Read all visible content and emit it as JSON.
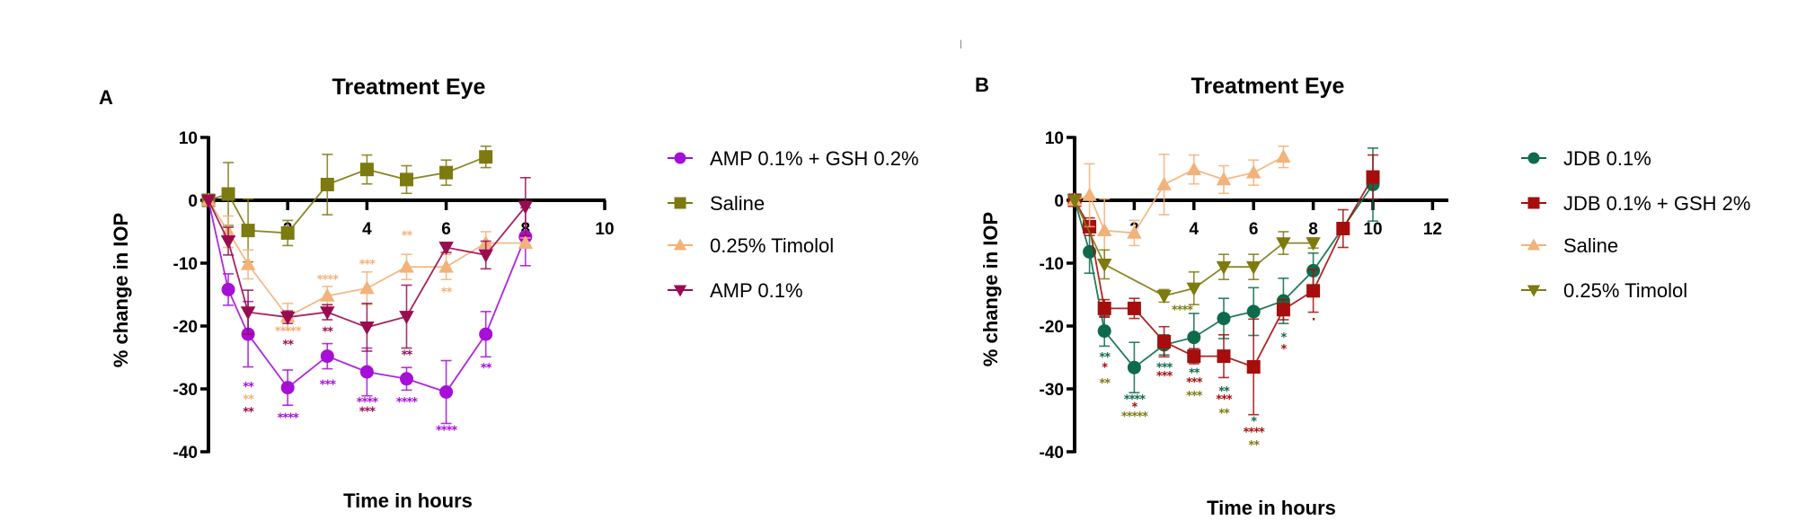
{
  "figure": {
    "marker_tick": "|"
  },
  "chart_data": [
    {
      "type": "line",
      "panel_label": "A",
      "title": "Treatment Eye",
      "xlabel": "Time in hours",
      "ylabel": "% change in IOP",
      "xlim": [
        0,
        10
      ],
      "ylim": [
        -40,
        10
      ],
      "xticks": [
        2,
        4,
        6,
        8,
        10
      ],
      "xtick_labels": [
        "2",
        "4",
        "6",
        "8",
        "10"
      ],
      "yticks": [
        10,
        0,
        -10,
        -20,
        -30,
        -40
      ],
      "ytick_labels": [
        "10",
        "0",
        "-10",
        "-20",
        "-30",
        "-40"
      ],
      "grid": false,
      "legend_position": "right",
      "series": [
        {
          "name": "AMP 0.1% + GSH 0.2%",
          "color": "#a60fd6",
          "marker": "circle",
          "x": [
            0,
            0.5,
            1,
            2,
            3,
            4,
            5,
            6,
            7,
            8
          ],
          "y": [
            0,
            -14.2,
            -21.3,
            -29.8,
            -24.8,
            -27.3,
            -28.4,
            -30.5,
            -21.3,
            -5.8
          ],
          "err": [
            0,
            2.5,
            5.2,
            2.8,
            2.0,
            3.8,
            1.8,
            5.0,
            3.6,
            4.6
          ]
        },
        {
          "name": "Saline",
          "color": "#7d7a0f",
          "marker": "square",
          "x": [
            0,
            0.5,
            1,
            2,
            3,
            4,
            5,
            6,
            7
          ],
          "y": [
            0,
            1.0,
            -4.8,
            -5.2,
            2.5,
            4.9,
            3.3,
            4.4,
            6.9
          ],
          "err": [
            0,
            5.0,
            5.0,
            2.0,
            4.8,
            2.3,
            2.2,
            2.0,
            1.7
          ]
        },
        {
          "name": "0.25% Timolol",
          "color": "#f2b27a",
          "marker": "triangle-up",
          "x": [
            0,
            0.5,
            1,
            2,
            3,
            4,
            5,
            6,
            7,
            8
          ],
          "y": [
            0,
            -5.0,
            -10.2,
            -18.5,
            -15.2,
            -14.0,
            -10.6,
            -10.6,
            -6.8,
            -6.8
          ],
          "err": [
            0,
            2.5,
            2.3,
            2.1,
            1.5,
            2.6,
            2.0,
            2.0,
            1.8,
            0.8
          ]
        },
        {
          "name": "AMP 0.1%",
          "color": "#990c4f",
          "marker": "triangle-down",
          "x": [
            0,
            0.5,
            1,
            2,
            3,
            4,
            5,
            6,
            7,
            8
          ],
          "y": [
            0,
            -6.5,
            -17.8,
            -18.6,
            -17.8,
            -20.2,
            -18.5,
            -7.5,
            -8.7,
            -1.0
          ],
          "err": [
            0,
            2.2,
            3.5,
            1.0,
            1.2,
            3.8,
            5.0,
            0.8,
            2.2,
            4.6
          ]
        }
      ],
      "annotations": [
        {
          "x": 1,
          "y": -30.3,
          "text": "**",
          "color": "#a60fd6"
        },
        {
          "x": 1,
          "y": -32.3,
          "text": "**",
          "color": "#f2b27a"
        },
        {
          "x": 1,
          "y": -34.3,
          "text": "**",
          "color": "#990c4f"
        },
        {
          "x": 2,
          "y": -21.4,
          "text": "*****",
          "color": "#f2b27a"
        },
        {
          "x": 2,
          "y": -23.6,
          "text": "**",
          "color": "#990c4f"
        },
        {
          "x": 2,
          "y": -35.2,
          "text": "****",
          "color": "#a60fd6"
        },
        {
          "x": 3,
          "y": -13.2,
          "text": "****",
          "color": "#f2b27a"
        },
        {
          "x": 3,
          "y": -21.5,
          "text": "**",
          "color": "#990c4f"
        },
        {
          "x": 3,
          "y": -29.9,
          "text": "***",
          "color": "#a60fd6"
        },
        {
          "x": 4,
          "y": -10.8,
          "text": "***",
          "color": "#f2b27a"
        },
        {
          "x": 4,
          "y": -32.7,
          "text": "****",
          "color": "#a60fd6"
        },
        {
          "x": 4,
          "y": -34.2,
          "text": "***",
          "color": "#990c4f"
        },
        {
          "x": 5,
          "y": -6.2,
          "text": "**",
          "color": "#f2b27a"
        },
        {
          "x": 5,
          "y": -25.2,
          "text": "**",
          "color": "#990c4f"
        },
        {
          "x": 5,
          "y": -32.7,
          "text": "****",
          "color": "#a60fd6"
        },
        {
          "x": 6,
          "y": -15.2,
          "text": "**",
          "color": "#f2b27a"
        },
        {
          "x": 6,
          "y": -37.2,
          "text": "****",
          "color": "#a60fd6"
        },
        {
          "x": 7,
          "y": -27.3,
          "text": "**",
          "color": "#a60fd6"
        }
      ]
    },
    {
      "type": "line",
      "panel_label": "B",
      "title": "Treatment Eye",
      "xlabel": "Time in hours",
      "ylabel": "% change in IOP",
      "xlim": [
        0,
        12.5
      ],
      "ylim": [
        -40,
        10
      ],
      "xticks": [
        2,
        4,
        6,
        8,
        10,
        12
      ],
      "xtick_labels": [
        "2",
        "4",
        "6",
        "8",
        "10",
        "12"
      ],
      "yticks": [
        10,
        0,
        -10,
        -20,
        -30,
        -40
      ],
      "ytick_labels": [
        "10",
        "0",
        "-10",
        "-20",
        "-30",
        "-40"
      ],
      "grid": false,
      "legend_position": "right",
      "series": [
        {
          "name": "JDB 0.1%",
          "color": "#0d6b4a",
          "marker": "circle",
          "x": [
            0,
            0.5,
            1,
            2,
            3,
            4,
            5,
            6,
            7,
            8,
            10
          ],
          "y": [
            0,
            -8.2,
            -20.8,
            -26.6,
            -23.0,
            -21.8,
            -18.8,
            -17.7,
            -16.0,
            -11.2,
            2.5
          ],
          "err": [
            0,
            3.4,
            2.4,
            4.0,
            1.6,
            3.8,
            3.2,
            3.8,
            3.6,
            2.8,
            5.8
          ]
        },
        {
          "name": "JDB 0.1% + GSH 2%",
          "color": "#a60d0d",
          "marker": "square",
          "x": [
            0,
            0.5,
            1,
            2,
            3,
            4,
            5,
            6,
            7,
            8,
            9,
            10
          ],
          "y": [
            0,
            -4.2,
            -17.2,
            -17.2,
            -22.5,
            -24.8,
            -24.8,
            -26.5,
            -17.4,
            -14.4,
            -4.5,
            3.7
          ],
          "err": [
            0,
            1.4,
            1.4,
            1.6,
            2.4,
            1.2,
            3.4,
            7.6,
            1.6,
            3.4,
            3.0,
            3.5
          ]
        },
        {
          "name": "Saline",
          "color": "#f2b27a",
          "marker": "triangle-up",
          "x": [
            0,
            0.5,
            1,
            2,
            3,
            4,
            5,
            6,
            7
          ],
          "y": [
            0,
            0.8,
            -4.8,
            -5.2,
            2.5,
            4.9,
            3.3,
            4.4,
            6.9
          ],
          "err": [
            0,
            5.0,
            5.0,
            2.0,
            4.8,
            2.3,
            2.2,
            2.0,
            1.7
          ]
        },
        {
          "name": "0.25% Timolol",
          "color": "#7d7a0f",
          "marker": "triangle-down",
          "x": [
            0,
            1,
            3,
            4,
            5,
            6,
            7,
            8
          ],
          "y": [
            0,
            -10.2,
            -15.2,
            -14.0,
            -10.6,
            -10.6,
            -6.8,
            -6.8
          ],
          "err": [
            0,
            2.3,
            1.0,
            2.6,
            2.0,
            2.0,
            1.8,
            0.8
          ]
        }
      ],
      "annotations": [
        {
          "x": 3.6,
          "y": -18.1,
          "text": "****",
          "color": "#7d7a0f"
        },
        {
          "x": 1,
          "y": -25.6,
          "text": "**",
          "color": "#0d6b4a"
        },
        {
          "x": 1,
          "y": -27.2,
          "text": "*",
          "color": "#a60d0d"
        },
        {
          "x": 1,
          "y": -29.7,
          "text": "**",
          "color": "#7d7a0f"
        },
        {
          "x": 2,
          "y": -32.3,
          "text": "****",
          "color": "#0d6b4a"
        },
        {
          "x": 2,
          "y": -33.5,
          "text": "*",
          "color": "#a60d0d"
        },
        {
          "x": 2,
          "y": -35.0,
          "text": "*****",
          "color": "#7d7a0f"
        },
        {
          "x": 3,
          "y": -27.2,
          "text": "***",
          "color": "#0d6b4a"
        },
        {
          "x": 3,
          "y": -28.6,
          "text": "***",
          "color": "#a60d0d"
        },
        {
          "x": 4,
          "y": -28.1,
          "text": "**",
          "color": "#0d6b4a"
        },
        {
          "x": 4,
          "y": -29.6,
          "text": "***",
          "color": "#a60d0d"
        },
        {
          "x": 4,
          "y": -31.7,
          "text": "***",
          "color": "#7d7a0f"
        },
        {
          "x": 5,
          "y": -31.0,
          "text": "**",
          "color": "#0d6b4a"
        },
        {
          "x": 5,
          "y": -32.3,
          "text": "***",
          "color": "#a60d0d"
        },
        {
          "x": 5,
          "y": -34.5,
          "text": "**",
          "color": "#7d7a0f"
        },
        {
          "x": 6,
          "y": -35.8,
          "text": "*",
          "color": "#0d6b4a"
        },
        {
          "x": 6,
          "y": -37.5,
          "text": "****",
          "color": "#a60d0d"
        },
        {
          "x": 6,
          "y": -39.6,
          "text": "**",
          "color": "#7d7a0f"
        },
        {
          "x": 7,
          "y": -22.4,
          "text": "*",
          "color": "#0d6b4a"
        },
        {
          "x": 7,
          "y": -24.3,
          "text": "*",
          "color": "#a60d0d"
        },
        {
          "x": 8,
          "y": -19.6,
          "text": "·",
          "color": "#a60d0d"
        }
      ]
    }
  ]
}
